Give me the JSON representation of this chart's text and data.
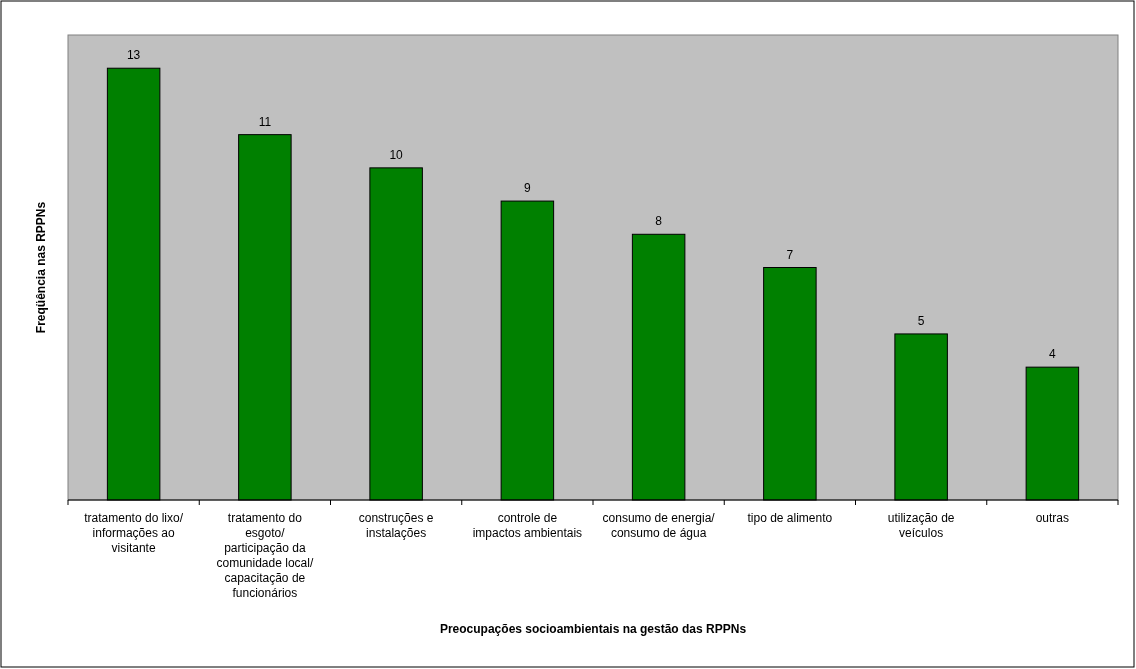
{
  "chart_data": {
    "type": "bar",
    "xlabel": "Preocupações socioambientais na gestão das RPPNs",
    "ylabel": "Freqüência nas RPPNs",
    "categories": [
      "tratamento do lixo/ informações ao visitante",
      "tratamento do esgoto/ participação da comunidade local/ capacitação de funcionários",
      "construções e instalações",
      "controle de impactos ambientais",
      "consumo de energia/ consumo de água",
      "tipo de alimento",
      "utilização de veículos",
      "outras"
    ],
    "values": [
      13,
      11,
      10,
      9,
      8,
      7,
      5,
      4
    ],
    "color": "#008000",
    "ylim": [
      0,
      14
    ],
    "data_labels": true,
    "tick_labels": "x"
  }
}
